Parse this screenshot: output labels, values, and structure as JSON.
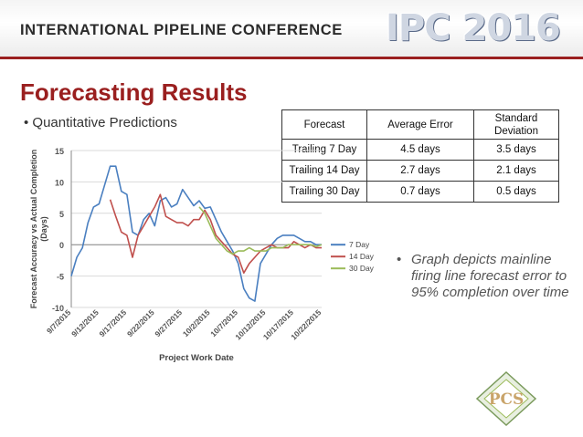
{
  "header": {
    "conference_title": "INTERNATIONAL PIPELINE CONFERENCE",
    "logo_text": "IPC 2016"
  },
  "slide": {
    "title": "Forecasting Results",
    "bullet_left": "Quantitative Predictions",
    "bullet_right": "Graph depicts mainline firing line forecast error to 95% completion over time",
    "badge_text": "PCS"
  },
  "table": {
    "headers": [
      "Forecast",
      "Average Error",
      "Standard Deviation"
    ],
    "rows": [
      [
        "Trailing 7 Day",
        "4.5 days",
        "3.5 days"
      ],
      [
        "Trailing 14 Day",
        "2.7 days",
        "2.1 days"
      ],
      [
        "Trailing 30 Day",
        "0.7 days",
        "0.5 days"
      ]
    ]
  },
  "chart_data": {
    "type": "line",
    "xlabel": "Project Work Date",
    "ylabel": "Forecast Accuracy vs Actual Completion (Days)",
    "ylim": [
      -10,
      15
    ],
    "yticks": [
      -10,
      -5,
      0,
      5,
      10,
      15
    ],
    "x_tick_labels": [
      "9/7/2015",
      "9/12/2015",
      "9/17/2015",
      "9/22/2015",
      "9/27/2015",
      "10/2/2015",
      "10/7/2015",
      "10/12/2015",
      "10/17/2015",
      "10/22/2015"
    ],
    "x_start_label": "9/7/2015",
    "x_end_label": "10/22/2015",
    "x_range_days": 45,
    "grid": true,
    "legend_position": "right",
    "series": [
      {
        "name": "7 Day",
        "color": "#4a7fc0",
        "x": [
          0,
          1,
          2,
          3,
          4,
          5,
          6,
          7,
          8,
          9,
          10,
          11,
          12,
          13,
          14,
          15,
          16,
          17,
          18,
          19,
          20,
          21,
          22,
          23,
          24,
          25,
          26,
          27,
          28,
          29,
          30,
          31,
          32,
          33,
          34,
          35,
          36,
          37,
          38,
          39,
          40,
          41,
          42,
          43,
          44,
          45
        ],
        "y": [
          -5,
          -2,
          -0.5,
          3.5,
          6,
          6.5,
          9.5,
          12.5,
          12.5,
          8.5,
          8,
          2,
          1.5,
          4,
          5,
          3,
          7,
          7.5,
          6,
          6.5,
          8.8,
          7.5,
          6.2,
          7,
          5.8,
          6,
          4,
          2,
          0.5,
          -1,
          -3,
          -7,
          -8.5,
          -9,
          -3,
          -1.5,
          0,
          1,
          1.5,
          1.5,
          1.5,
          1,
          0.5,
          0.5,
          0,
          0
        ]
      },
      {
        "name": "14 Day",
        "color": "#c0504d",
        "x": [
          7,
          8,
          9,
          10,
          11,
          12,
          13,
          14,
          15,
          16,
          17,
          18,
          19,
          20,
          21,
          22,
          23,
          24,
          25,
          26,
          27,
          28,
          29,
          30,
          31,
          32,
          33,
          34,
          35,
          36,
          37,
          38,
          39,
          40,
          41,
          42,
          43,
          44,
          45
        ],
        "y": [
          7.2,
          4.5,
          2,
          1.5,
          -2,
          1.5,
          3,
          4.5,
          6,
          8,
          4.5,
          4,
          3.5,
          3.5,
          3,
          4,
          4,
          5.5,
          4,
          1.5,
          0.5,
          -0.5,
          -1.5,
          -2,
          -4.5,
          -3,
          -2,
          -1,
          -0.5,
          0,
          -0.5,
          -0.5,
          -0.5,
          0.5,
          0,
          -0.5,
          0,
          -0.5,
          -0.5
        ]
      },
      {
        "name": "30 Day",
        "color": "#9bbb59",
        "x": [
          23,
          24,
          25,
          26,
          27,
          28,
          29,
          30,
          31,
          32,
          33,
          34,
          35,
          36,
          37,
          38,
          39,
          40,
          41,
          42,
          43,
          44,
          45
        ],
        "y": [
          6,
          5,
          3,
          1,
          0,
          -1,
          -1.5,
          -1,
          -1,
          -0.5,
          -1,
          -1,
          -1,
          -0.5,
          -0.5,
          -0.5,
          0,
          0,
          0,
          0,
          0,
          -0.3,
          0
        ]
      }
    ]
  },
  "colors": {
    "accent": "#9a1f1f",
    "grid": "#d9d9d9"
  }
}
